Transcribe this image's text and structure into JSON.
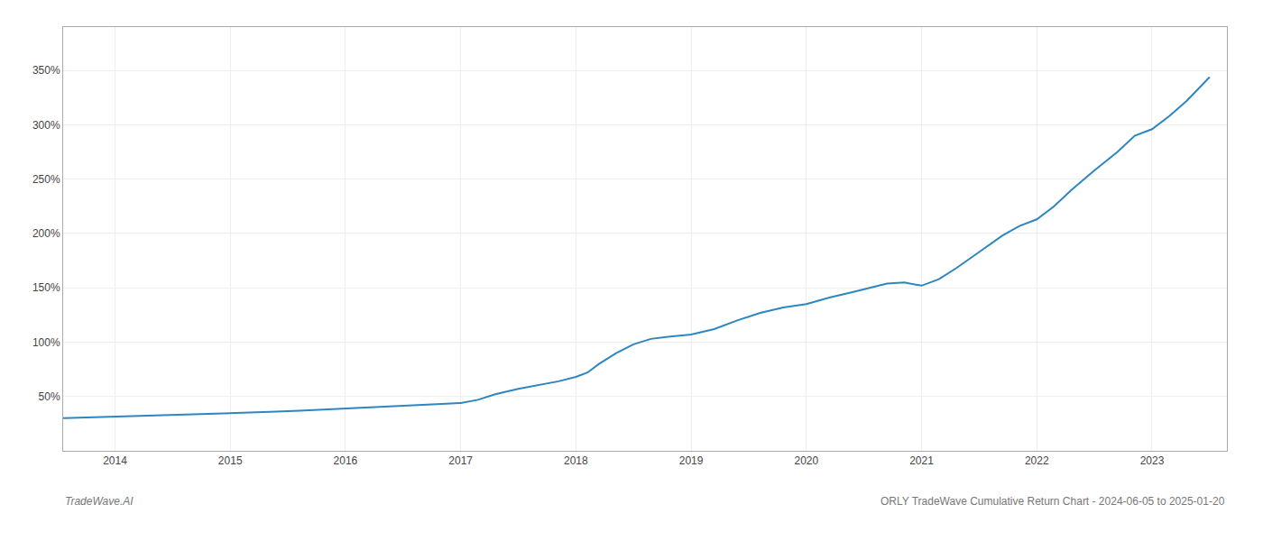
{
  "chart_data": {
    "type": "line",
    "annotations": [
      "TradeWave.AI",
      "ORLY TradeWave Cumulative Return Chart - 2024-06-05 to 2025-01-20"
    ],
    "x": [
      2013.55,
      2013.7,
      2013.9,
      2014.0,
      2014.15,
      2014.3,
      2014.5,
      2014.7,
      2014.9,
      2015.0,
      2015.2,
      2015.4,
      2015.6,
      2015.8,
      2016.0,
      2016.2,
      2016.4,
      2016.6,
      2016.8,
      2017.0,
      2017.15,
      2017.3,
      2017.5,
      2017.7,
      2017.85,
      2018.0,
      2018.1,
      2018.2,
      2018.35,
      2018.5,
      2018.65,
      2018.8,
      2019.0,
      2019.2,
      2019.4,
      2019.6,
      2019.8,
      2020.0,
      2020.1,
      2020.2,
      2020.4,
      2020.55,
      2020.7,
      2020.85,
      2021.0,
      2021.15,
      2021.3,
      2021.5,
      2021.7,
      2021.85,
      2022.0,
      2022.15,
      2022.3,
      2022.5,
      2022.7,
      2022.85,
      2023.0,
      2023.15,
      2023.3,
      2023.5
    ],
    "values": [
      30,
      30.5,
      31,
      31.5,
      31.8,
      32.5,
      33,
      33.5,
      34,
      34.5,
      35.5,
      36,
      37,
      38,
      39,
      40,
      41,
      42,
      43,
      44,
      47,
      52,
      57,
      61,
      64,
      68,
      72,
      80,
      90,
      98,
      103,
      105,
      107,
      112,
      120,
      127,
      132,
      135,
      138,
      141,
      146,
      150,
      154,
      155,
      152,
      158,
      168,
      183,
      198,
      207,
      213,
      225,
      240,
      258,
      275,
      290,
      296,
      308,
      322,
      344
    ],
    "color": "#2e86c1",
    "xlim": [
      2013.55,
      2023.65
    ],
    "xticks": [
      2014,
      2015,
      2016,
      2017,
      2018,
      2019,
      2020,
      2021,
      2022,
      2023
    ],
    "ylim": [
      0,
      390
    ],
    "yticks": [
      {
        "value": 50,
        "label": "50%"
      },
      {
        "value": 100,
        "label": "100%"
      },
      {
        "value": 150,
        "label": "150%"
      },
      {
        "value": 200,
        "label": "200%"
      },
      {
        "value": 250,
        "label": "250%"
      },
      {
        "value": 300,
        "label": "300%"
      },
      {
        "value": 350,
        "label": "350%"
      }
    ],
    "grid": true
  }
}
